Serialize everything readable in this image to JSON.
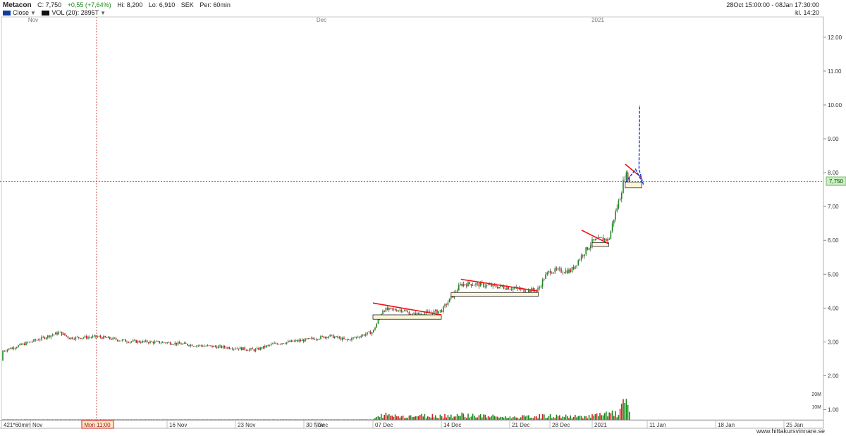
{
  "header": {
    "ticker": "Metacon",
    "close": "C: 7,750",
    "change": "+0,55 (+7,64%)",
    "high": "Hi: 8,200",
    "low": "Lo: 6,910",
    "currency": "SEK",
    "period": "Per: 60min",
    "legend_close": "Close",
    "legend_vol": "VOL (20): 2895T",
    "date_range": "28Oct 15:00:00 - 08Jan 17:30:00",
    "clock": "kl. 14:20"
  },
  "colors": {
    "price_up": "#1a8a1a",
    "price_down": "#cc2222",
    "trendline": "#ee1111",
    "projection": "#1133cc",
    "box_fill": "#fbf6d8",
    "last_price_bg": "#c8f0c0",
    "crosshair": "#cc2222",
    "close_legend": "#0a3d9e"
  },
  "chart_data": {
    "type": "candlestick",
    "y_range": [
      0.7,
      12.6
    ],
    "y_ticks": [
      "1.00",
      "2.00",
      "3.00",
      "4.00",
      "5.00",
      "6.00",
      "7.00",
      "8.00",
      "9.00",
      "10.00",
      "11.00",
      "12.00"
    ],
    "top_months": [
      "Nov",
      "Dec",
      "2021"
    ],
    "x_labels": [
      "421*60min",
      "Nov",
      "16 Nov",
      "23 Nov",
      "30 Nov",
      "Dec",
      "07 Dec",
      "14 Dec",
      "21 Dec",
      "28 Dec",
      "2021",
      "11 Jan",
      "18 Jan",
      "25 Jan"
    ],
    "crosshair_label": "Mon 11:00",
    "last_price": "7,750",
    "volume_ticks": [
      "20M",
      "10M"
    ],
    "price_path": [
      [
        "26 Oct",
        2.45
      ],
      [
        "28 Oct",
        2.6
      ],
      [
        "30 Oct",
        2.72
      ],
      [
        "02 Nov",
        3.0
      ],
      [
        "05 Nov",
        3.28
      ],
      [
        "06 Nov",
        3.12
      ],
      [
        "09 Nov",
        3.15
      ],
      [
        "12 Nov",
        3.02
      ],
      [
        "16 Nov",
        2.98
      ],
      [
        "19 Nov",
        2.9
      ],
      [
        "23 Nov",
        2.82
      ],
      [
        "25 Nov",
        2.76
      ],
      [
        "27 Nov",
        2.95
      ],
      [
        "30 Nov",
        3.05
      ],
      [
        "02 Dec",
        3.18
      ],
      [
        "04 Dec",
        3.05
      ],
      [
        "06 Dec",
        3.22
      ],
      [
        "07 Dec",
        3.3
      ],
      [
        "08 Dec",
        3.95
      ],
      [
        "10 Dec",
        3.95
      ],
      [
        "11 Dec",
        3.8
      ],
      [
        "14 Dec",
        3.92
      ],
      [
        "15 Dec",
        4.3
      ],
      [
        "16 Dec",
        4.7
      ],
      [
        "17 Dec",
        4.72
      ],
      [
        "21 Dec",
        4.6
      ],
      [
        "24 Dec",
        4.52
      ],
      [
        "26 Dec",
        4.55
      ],
      [
        "27 Dec",
        4.9
      ],
      [
        "28 Dec",
        5.1
      ],
      [
        "30 Dec",
        5.1
      ],
      [
        "31 Dec",
        5.55
      ],
      [
        "01 Jan",
        5.95
      ],
      [
        "03 Jan",
        6.05
      ],
      [
        "04 Jan",
        6.0
      ],
      [
        "05 Jan",
        6.7
      ],
      [
        "06 Jan",
        7.25
      ],
      [
        "07 Jan",
        7.95
      ],
      [
        "08 Jan",
        7.75
      ]
    ],
    "volume_path": [
      [
        "07 Dec",
        0.3
      ],
      [
        "08 Dec",
        4.0
      ],
      [
        "10 Dec",
        3.0
      ],
      [
        "15 Dec",
        3.5
      ],
      [
        "16 Dec",
        4.0
      ],
      [
        "21 Dec",
        2.0
      ],
      [
        "27 Dec",
        3.0
      ],
      [
        "31 Dec",
        2.5
      ],
      [
        "03 Jan",
        4.0
      ],
      [
        "05 Jan",
        5.0
      ],
      [
        "06 Jan",
        4.5
      ],
      [
        "07 Jan",
        19.0
      ],
      [
        "08 Jan",
        8.0
      ]
    ],
    "annotations": {
      "trendlines": [
        {
          "from": [
            "07 Dec",
            4.15
          ],
          "to": [
            "14 Dec",
            3.8
          ]
        },
        {
          "from": [
            "16 Dec",
            4.85
          ],
          "to": [
            "26 Dec",
            4.5
          ]
        },
        {
          "from": [
            "31 Dec",
            6.3
          ],
          "to": [
            "04 Jan",
            5.9
          ]
        },
        {
          "from": [
            "07 Jan",
            8.25
          ],
          "to": [
            "10 Jan",
            7.85
          ]
        }
      ],
      "consolidation_boxes": [
        {
          "from": "07 Dec",
          "to": "14 Dec",
          "low": 3.67,
          "high": 3.8
        },
        {
          "from": "15 Dec",
          "to": "26 Dec",
          "low": 4.35,
          "high": 4.46
        },
        {
          "from": "01 Jan",
          "to": "04 Jan",
          "low": 5.82,
          "high": 5.93
        },
        {
          "from": "07 Jan",
          "to": "10 Jan",
          "low": 7.55,
          "high": 7.72
        }
      ],
      "projection": [
        [
          "07 Jan",
          7.7
        ],
        [
          "08 Jan",
          8.1
        ],
        [
          "08 Jan",
          7.65
        ],
        [
          "09 Jan",
          8.1
        ],
        [
          "10 Jan",
          10.0
        ]
      ]
    }
  },
  "footer": {
    "site": "www.hittakursvinnare.se"
  }
}
